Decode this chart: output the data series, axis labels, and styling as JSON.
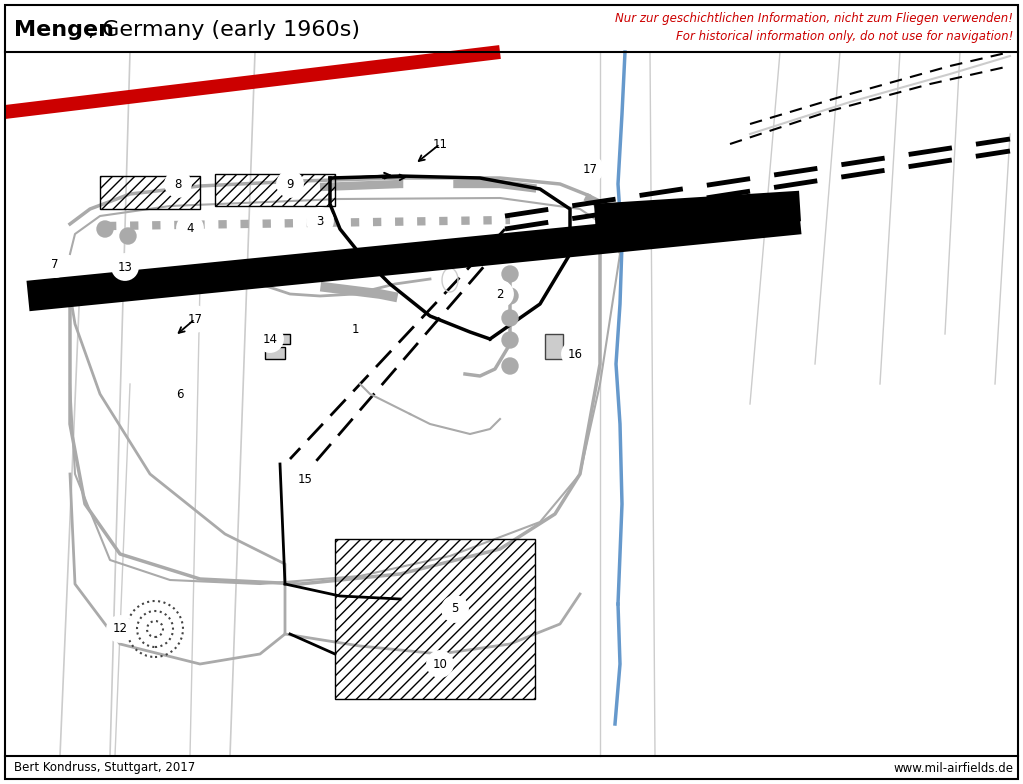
{
  "title_bold": "Mengen",
  "title_rest": ", Germany (early 1960s)",
  "warning_de": "Nur zur geschichtlichen Information, nicht zum Fliegen verwenden!",
  "warning_en": "For historical information only, do not use for navigation!",
  "footer_left": "Bert Kondruss, Stuttgart, 2017",
  "footer_right": "www.mil-airfields.de",
  "bg_color": "#ffffff",
  "border_color": "#000000",
  "gray": "#aaaaaa",
  "lgray": "#cccccc",
  "dgray": "#444444",
  "blk": "#000000",
  "red": "#cc0000",
  "blue": "#6699cc"
}
